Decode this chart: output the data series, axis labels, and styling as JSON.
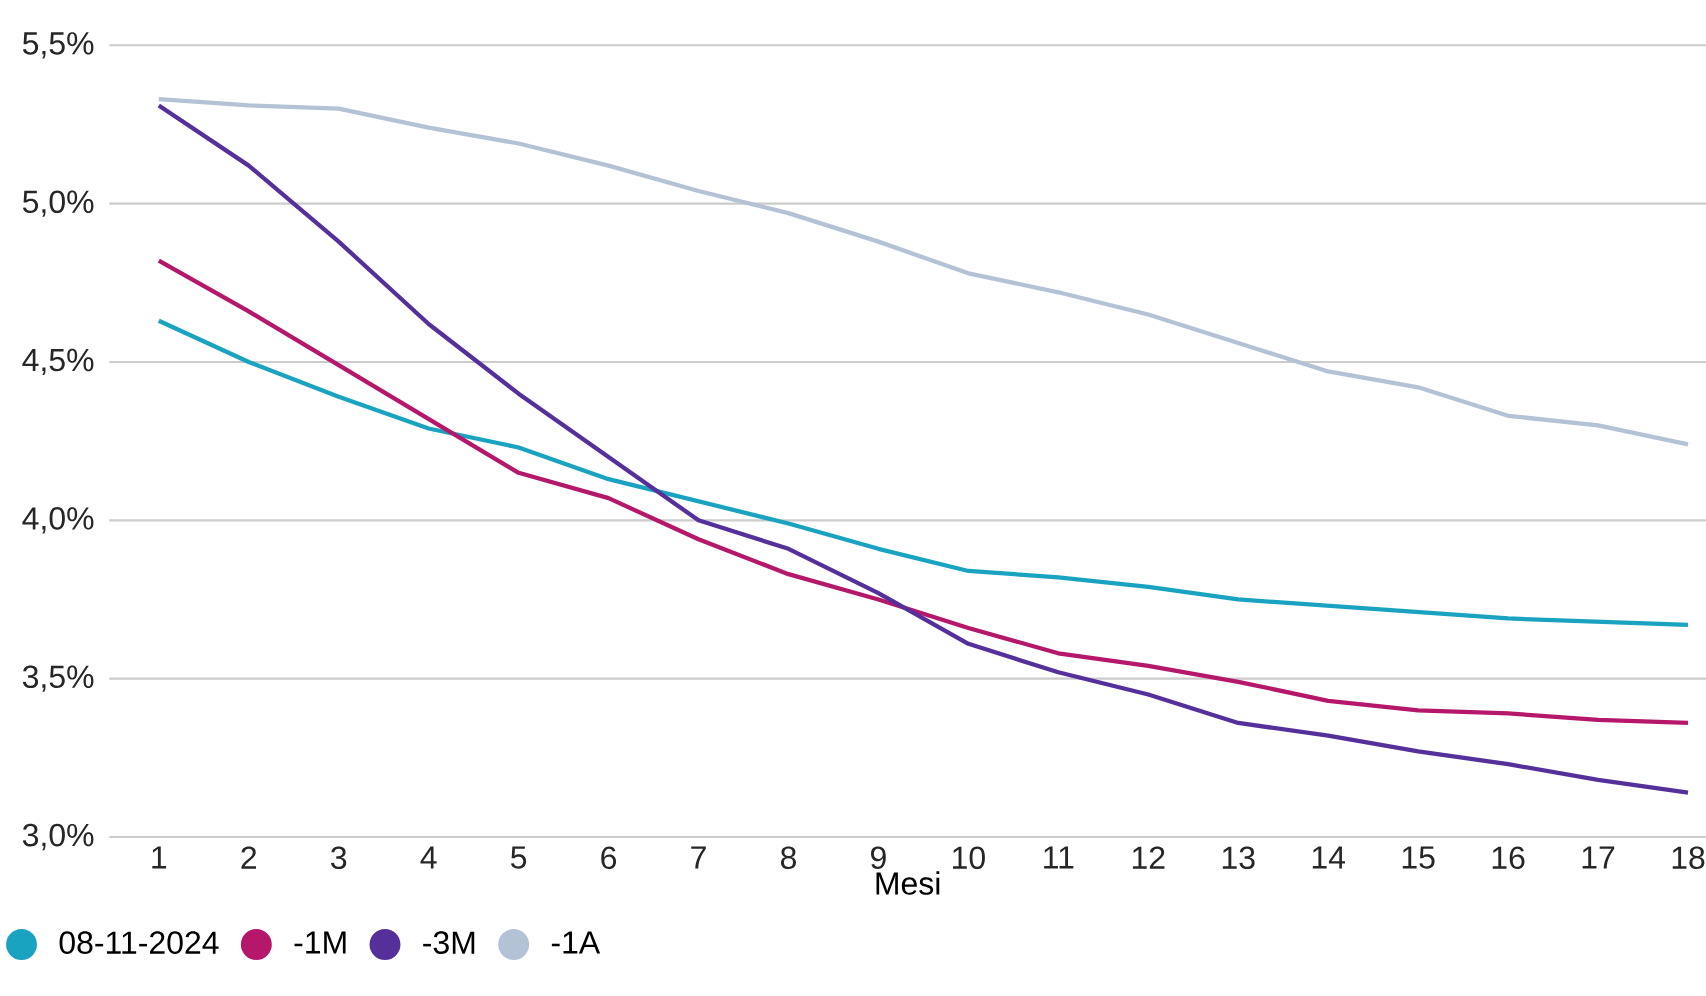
{
  "chart_data": {
    "type": "line",
    "xlabel": "Mesi",
    "categories": [
      "1",
      "2",
      "3",
      "4",
      "5",
      "6",
      "7",
      "8",
      "9",
      "10",
      "11",
      "12",
      "13",
      "14",
      "15",
      "16",
      "17",
      "18"
    ],
    "series": [
      {
        "name": "08-11-2024",
        "color": "#1aa3c0",
        "values": [
          4.63,
          4.5,
          4.39,
          4.29,
          4.23,
          4.13,
          4.06,
          3.99,
          3.91,
          3.84,
          3.82,
          3.79,
          3.75,
          3.73,
          3.71,
          3.69,
          3.68,
          3.67
        ]
      },
      {
        "name": "-1M",
        "color": "#b5176a",
        "values": [
          4.82,
          4.66,
          4.49,
          4.32,
          4.15,
          4.07,
          3.94,
          3.83,
          3.75,
          3.66,
          3.58,
          3.54,
          3.49,
          3.43,
          3.4,
          3.39,
          3.37,
          3.36
        ]
      },
      {
        "name": "-3M",
        "color": "#55309b",
        "values": [
          5.31,
          5.12,
          4.88,
          4.62,
          4.4,
          4.2,
          4.0,
          3.91,
          3.77,
          3.61,
          3.52,
          3.45,
          3.36,
          3.32,
          3.27,
          3.23,
          3.18,
          3.14
        ]
      },
      {
        "name": "-1A",
        "color": "#b4c2d6",
        "values": [
          5.33,
          5.31,
          5.3,
          5.24,
          5.19,
          5.12,
          5.04,
          4.97,
          4.88,
          4.78,
          4.72,
          4.65,
          4.56,
          4.47,
          4.42,
          4.33,
          4.3,
          4.24
        ]
      }
    ],
    "ylim": [
      3.0,
      5.5
    ],
    "yticks": [
      {
        "value": 3.0,
        "label": "3,0%"
      },
      {
        "value": 3.5,
        "label": "3,5%"
      },
      {
        "value": 4.0,
        "label": "4,0%"
      },
      {
        "value": 4.5,
        "label": "4,5%"
      },
      {
        "value": 5.0,
        "label": "5,0%"
      },
      {
        "value": 5.5,
        "label": "5,5%"
      }
    ],
    "grid": "y",
    "legend": "bottom",
    "line_style": "solid"
  }
}
